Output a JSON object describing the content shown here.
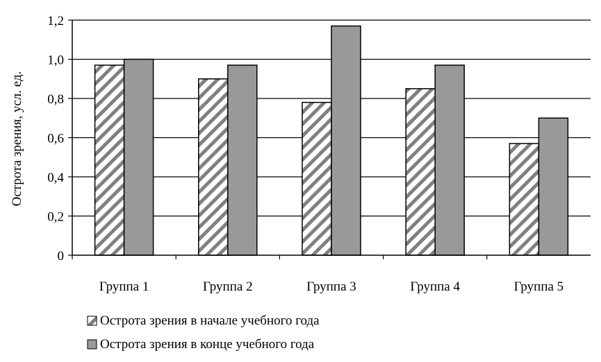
{
  "chart_data": {
    "type": "bar",
    "title": "",
    "xlabel": "",
    "ylabel": "Острота зрения, усл. ед.",
    "ylim": [
      0,
      1.2
    ],
    "yticks": [
      "0",
      "0,2",
      "0,4",
      "0,6",
      "0,8",
      "1,0",
      "1,2"
    ],
    "ytick_values": [
      0,
      0.2,
      0.4,
      0.6,
      0.8,
      1.0,
      1.2
    ],
    "grid": true,
    "legend_placement": "bottom-left",
    "categories": [
      "Группа 1",
      "Группа 2",
      "Группа 3",
      "Группа 4",
      "Группа 5"
    ],
    "series": [
      {
        "name": "Острота зрения в начале учебного года",
        "values": [
          0.97,
          0.9,
          0.78,
          0.85,
          0.57
        ],
        "color": "#808080",
        "pattern": "diagonal-hatch"
      },
      {
        "name": "Острота зрения в конце учебного года",
        "values": [
          1.0,
          0.97,
          1.17,
          0.97,
          0.7
        ],
        "color": "#999999",
        "pattern": "solid"
      }
    ]
  }
}
